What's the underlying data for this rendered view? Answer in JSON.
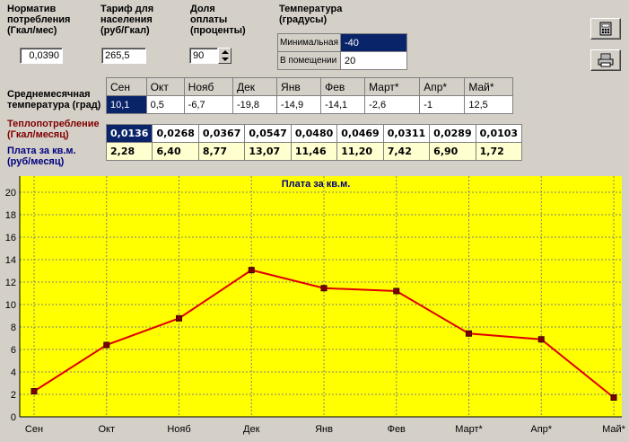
{
  "params": {
    "norm": {
      "label_l1": "Норматив",
      "label_l2": "потребления",
      "label_l3": "(Гкал/мес)",
      "value": "0,0390"
    },
    "tariff": {
      "label_l1": "Тариф для",
      "label_l2": "населения",
      "label_l3": "(руб/Гкал)",
      "value": "265,5"
    },
    "share": {
      "label_l1": "Доля",
      "label_l2": "оплаты",
      "label_l3": "(проценты)",
      "value": "90"
    },
    "temp": {
      "label_l1": "Температура",
      "label_l2": "(градусы)",
      "rows": [
        {
          "label": "Минимальная",
          "value": "-40"
        },
        {
          "label": "В помещении",
          "value": "20"
        }
      ]
    }
  },
  "toolbar": {
    "calc_icon": "calculator-icon",
    "print_icon": "printer-icon"
  },
  "labels": {
    "avg_temp_l1": "Среднемесячная",
    "avg_temp_l2": "температура (град)",
    "heat_l1": "Теплопотребление",
    "heat_l2": "(Гкал/месяц)",
    "pay_l1": "Плата за кв.м.",
    "pay_l2": "(руб/месяц)"
  },
  "months": [
    "Сен",
    "Окт",
    "Нояб",
    "Дек",
    "Янв",
    "Фев",
    "Март*",
    "Апр*",
    "Май*"
  ],
  "temperatures": [
    "10,1",
    "0,5",
    "-6,7",
    "-19,8",
    "-14,9",
    "-14,1",
    "-2,6",
    "-1",
    "12,5"
  ],
  "heat": [
    "0,0136",
    "0,0268",
    "0,0367",
    "0,0547",
    "0,0480",
    "0,0469",
    "0,0311",
    "0,0289",
    "0,0103"
  ],
  "payment": [
    "2,28",
    "6,40",
    "8,77",
    "13,07",
    "11,46",
    "11,20",
    "7,42",
    "6,90",
    "1,72"
  ],
  "colors": {
    "chart_bg": "#ffff00",
    "line": "#e00000",
    "marker": "#800000",
    "title": "#000080"
  },
  "chart_data": {
    "type": "line",
    "title": "Плата за кв.м.",
    "categories": [
      "Сен",
      "Окт",
      "Нояб",
      "Дек",
      "Янв",
      "Фев",
      "Март*",
      "Апр*",
      "Май*"
    ],
    "series": [
      {
        "values": [
          2.28,
          6.4,
          8.77,
          13.07,
          11.46,
          11.2,
          7.42,
          6.9,
          1.72
        ]
      }
    ],
    "yticks": [
      "0",
      "2",
      "4",
      "6",
      "8",
      "10",
      "12",
      "14",
      "16",
      "18",
      "20"
    ],
    "ylim": [
      0,
      20
    ],
    "grid": true
  }
}
